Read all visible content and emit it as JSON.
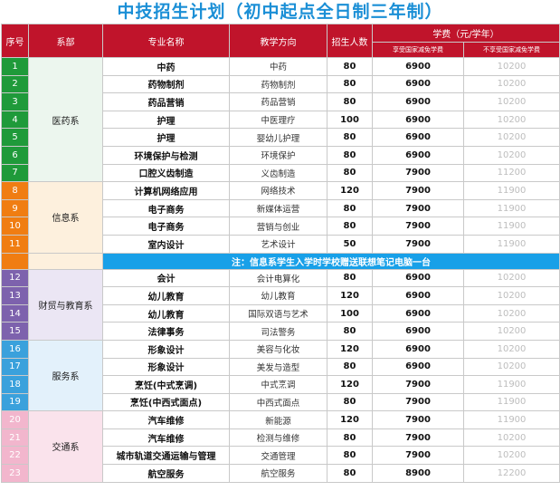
{
  "title": "中技招生计划（初中起点全日制三年制）",
  "headers": {
    "seq": "序号",
    "dept": "系部",
    "major": "专业名称",
    "direction": "教学方向",
    "enroll": "招生人数",
    "fee": "学费（元/学年）",
    "fee_with_subsidy": "享受国家减免学费",
    "fee_without_subsidy": "不享受国家减免学费"
  },
  "colors": {
    "header_bg": "#c0142b",
    "title": "#1b8fd6",
    "note_bg": "#18a0e8",
    "dept_medicine_seq": "#1f9a3a",
    "dept_medicine_bg": "#ecf6ee",
    "dept_info_seq": "#f07d12",
    "dept_info_bg": "#fdf0dd",
    "dept_finance_seq": "#7d62ad",
    "dept_finance_bg": "#ebe6f4",
    "dept_service_seq": "#3aa1dc",
    "dept_service_bg": "#e3f1fb",
    "dept_transport_seq": "#f2b6cd",
    "dept_transport_bg": "#fae3ec"
  },
  "note": "注：信息系学生入学时学校赠送联想笔记电脑一台",
  "departments": [
    {
      "name": "医药系",
      "rows": [
        {
          "seq": "1",
          "major": "中药",
          "direction": "中药",
          "enroll": "80",
          "fee1": "6900",
          "fee2": "10200"
        },
        {
          "seq": "2",
          "major": "药物制剂",
          "direction": "药物制剂",
          "enroll": "80",
          "fee1": "6900",
          "fee2": "10200"
        },
        {
          "seq": "3",
          "major": "药品营销",
          "direction": "药品营销",
          "enroll": "80",
          "fee1": "6900",
          "fee2": "10200"
        },
        {
          "seq": "4",
          "major": "护理",
          "direction": "中医理疗",
          "enroll": "100",
          "fee1": "6900",
          "fee2": "10200"
        },
        {
          "seq": "5",
          "major": "护理",
          "direction": "婴幼儿护理",
          "enroll": "80",
          "fee1": "6900",
          "fee2": "10200"
        },
        {
          "seq": "6",
          "major": "环境保护与检测",
          "direction": "环境保护",
          "enroll": "80",
          "fee1": "6900",
          "fee2": "10200"
        },
        {
          "seq": "7",
          "major": "口腔义齿制造",
          "direction": "义齿制造",
          "enroll": "80",
          "fee1": "7900",
          "fee2": "11200"
        }
      ]
    },
    {
      "name": "信息系",
      "rows": [
        {
          "seq": "8",
          "major": "计算机网络应用",
          "direction": "网络技术",
          "enroll": "120",
          "fee1": "7900",
          "fee2": "11900"
        },
        {
          "seq": "9",
          "major": "电子商务",
          "direction": "新媒体运营",
          "enroll": "80",
          "fee1": "7900",
          "fee2": "11900"
        },
        {
          "seq": "10",
          "major": "电子商务",
          "direction": "营销与创业",
          "enroll": "80",
          "fee1": "7900",
          "fee2": "11900"
        },
        {
          "seq": "11",
          "major": "室内设计",
          "direction": "艺术设计",
          "enroll": "50",
          "fee1": "7900",
          "fee2": "11900"
        }
      ]
    },
    {
      "name": "财贸与教育系",
      "rows": [
        {
          "seq": "12",
          "major": "会计",
          "direction": "会计电算化",
          "enroll": "80",
          "fee1": "6900",
          "fee2": "10200"
        },
        {
          "seq": "13",
          "major": "幼儿教育",
          "direction": "幼儿教育",
          "enroll": "120",
          "fee1": "6900",
          "fee2": "10200"
        },
        {
          "seq": "14",
          "major": "幼儿教育",
          "direction": "国际双语与艺术",
          "enroll": "100",
          "fee1": "6900",
          "fee2": "10200"
        },
        {
          "seq": "15",
          "major": "法律事务",
          "direction": "司法警务",
          "enroll": "80",
          "fee1": "6900",
          "fee2": "10200"
        }
      ]
    },
    {
      "name": "服务系",
      "rows": [
        {
          "seq": "16",
          "major": "形象设计",
          "direction": "美容与化妆",
          "enroll": "120",
          "fee1": "6900",
          "fee2": "10200"
        },
        {
          "seq": "17",
          "major": "形象设计",
          "direction": "美发与造型",
          "enroll": "80",
          "fee1": "6900",
          "fee2": "10200"
        },
        {
          "seq": "18",
          "major": "烹饪(中式烹调)",
          "direction": "中式烹调",
          "enroll": "120",
          "fee1": "7900",
          "fee2": "11900"
        },
        {
          "seq": "19",
          "major": "烹饪(中西式面点)",
          "direction": "中西式面点",
          "enroll": "80",
          "fee1": "7900",
          "fee2": "11900"
        }
      ]
    },
    {
      "name": "交通系",
      "rows": [
        {
          "seq": "20",
          "major": "汽车维修",
          "direction": "新能源",
          "enroll": "120",
          "fee1": "7900",
          "fee2": "11900"
        },
        {
          "seq": "21",
          "major": "汽车维修",
          "direction": "检测与维修",
          "enroll": "80",
          "fee1": "7900",
          "fee2": "10200"
        },
        {
          "seq": "22",
          "major": "城市轨道交通运输与管理",
          "direction": "交通管理",
          "enroll": "80",
          "fee1": "7900",
          "fee2": "10200"
        },
        {
          "seq": "23",
          "major": "航空服务",
          "direction": "航空服务",
          "enroll": "80",
          "fee1": "8900",
          "fee2": "12200"
        }
      ]
    }
  ]
}
